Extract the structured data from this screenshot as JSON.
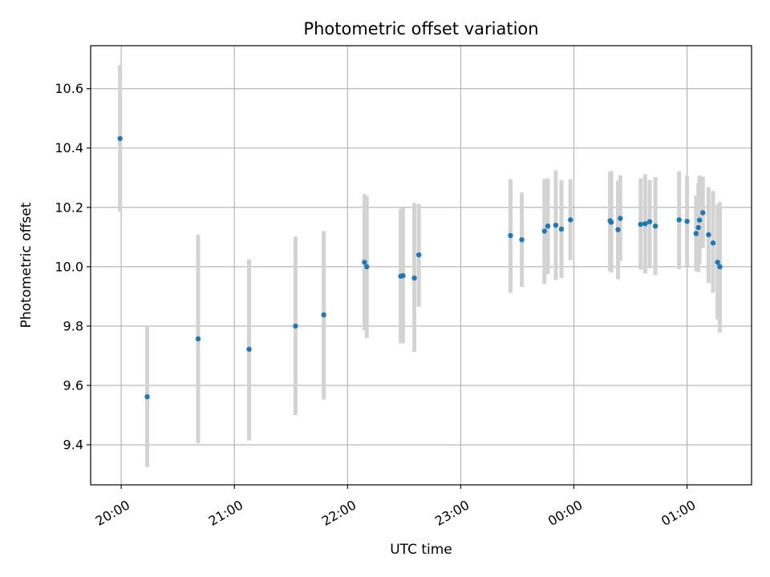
{
  "chart_data": {
    "type": "scatter",
    "title": "Photometric offset variation",
    "xlabel": "UTC time",
    "ylabel": "Photometric offset",
    "x_unit": "hours after 00:00 of first night",
    "x_ticks": [
      {
        "value": 20.0,
        "label": "20:00"
      },
      {
        "value": 21.0,
        "label": "21:00"
      },
      {
        "value": 22.0,
        "label": "22:00"
      },
      {
        "value": 23.0,
        "label": "23:00"
      },
      {
        "value": 24.0,
        "label": "00:00"
      },
      {
        "value": 25.0,
        "label": "01:00"
      }
    ],
    "y_ticks": [
      {
        "value": 9.4,
        "label": "9.4"
      },
      {
        "value": 9.6,
        "label": "9.6"
      },
      {
        "value": 9.8,
        "label": "9.8"
      },
      {
        "value": 10.0,
        "label": "10.0"
      },
      {
        "value": 10.2,
        "label": "10.2"
      },
      {
        "value": 10.4,
        "label": "10.4"
      },
      {
        "value": 10.6,
        "label": "10.6"
      }
    ],
    "xlim": [
      19.73,
      25.57
    ],
    "ylim": [
      9.265,
      10.745
    ],
    "grid": true,
    "colors": {
      "point": "#1f77b4",
      "errorbar": "#d3d3d3",
      "grid": "#b0b0b0",
      "axes": "#000000"
    },
    "series": [
      {
        "points": [
          {
            "x": 19.99,
            "y": 10.432,
            "err_low": 10.185,
            "err_high": 10.68
          },
          {
            "x": 20.23,
            "y": 9.562,
            "err_low": 9.325,
            "err_high": 9.8
          },
          {
            "x": 20.68,
            "y": 9.757,
            "err_low": 9.405,
            "err_high": 10.108
          },
          {
            "x": 21.13,
            "y": 9.722,
            "err_low": 9.415,
            "err_high": 10.025
          },
          {
            "x": 21.54,
            "y": 9.8,
            "err_low": 9.5,
            "err_high": 10.102
          },
          {
            "x": 21.79,
            "y": 9.838,
            "err_low": 9.553,
            "err_high": 10.12
          },
          {
            "x": 22.15,
            "y": 10.015,
            "err_low": 9.785,
            "err_high": 10.245
          },
          {
            "x": 22.17,
            "y": 10.0,
            "err_low": 9.76,
            "err_high": 10.238
          },
          {
            "x": 22.47,
            "y": 9.968,
            "err_low": 9.742,
            "err_high": 10.195
          },
          {
            "x": 22.49,
            "y": 9.97,
            "err_low": 9.742,
            "err_high": 10.198
          },
          {
            "x": 22.59,
            "y": 9.962,
            "err_low": 9.713,
            "err_high": 10.215
          },
          {
            "x": 22.63,
            "y": 10.04,
            "err_low": 9.865,
            "err_high": 10.212
          },
          {
            "x": 23.44,
            "y": 10.105,
            "err_low": 9.912,
            "err_high": 10.295
          },
          {
            "x": 23.54,
            "y": 10.091,
            "err_low": 9.932,
            "err_high": 10.25
          },
          {
            "x": 23.74,
            "y": 10.12,
            "err_low": 9.942,
            "err_high": 10.296
          },
          {
            "x": 23.77,
            "y": 10.137,
            "err_low": 9.975,
            "err_high": 10.298
          },
          {
            "x": 23.84,
            "y": 10.14,
            "err_low": 9.955,
            "err_high": 10.325
          },
          {
            "x": 23.89,
            "y": 10.127,
            "err_low": 9.962,
            "err_high": 10.292
          },
          {
            "x": 23.97,
            "y": 10.158,
            "err_low": 10.022,
            "err_high": 10.295
          },
          {
            "x": 24.32,
            "y": 10.155,
            "err_low": 9.985,
            "err_high": 10.32
          },
          {
            "x": 24.33,
            "y": 10.15,
            "err_low": 9.98,
            "err_high": 10.322
          },
          {
            "x": 24.39,
            "y": 10.125,
            "err_low": 9.958,
            "err_high": 10.29
          },
          {
            "x": 24.41,
            "y": 10.163,
            "err_low": 10.02,
            "err_high": 10.308
          },
          {
            "x": 24.59,
            "y": 10.143,
            "err_low": 9.99,
            "err_high": 10.298
          },
          {
            "x": 24.63,
            "y": 10.145,
            "err_low": 9.978,
            "err_high": 10.312
          },
          {
            "x": 24.67,
            "y": 10.152,
            "err_low": 9.995,
            "err_high": 10.292
          },
          {
            "x": 24.72,
            "y": 10.137,
            "err_low": 9.972,
            "err_high": 10.302
          },
          {
            "x": 24.93,
            "y": 10.158,
            "err_low": 9.992,
            "err_high": 10.322
          },
          {
            "x": 25.0,
            "y": 10.153,
            "err_low": 10.002,
            "err_high": 10.306
          },
          {
            "x": 25.08,
            "y": 10.112,
            "err_low": 9.985,
            "err_high": 10.24
          },
          {
            "x": 25.1,
            "y": 10.132,
            "err_low": 9.982,
            "err_high": 10.282
          },
          {
            "x": 25.11,
            "y": 10.157,
            "err_low": 10.01,
            "err_high": 10.307
          },
          {
            "x": 25.14,
            "y": 10.182,
            "err_low": 10.063,
            "err_high": 10.303
          },
          {
            "x": 25.19,
            "y": 10.108,
            "err_low": 9.945,
            "err_high": 10.268
          },
          {
            "x": 25.23,
            "y": 10.08,
            "err_low": 9.912,
            "err_high": 10.255
          },
          {
            "x": 25.27,
            "y": 10.015,
            "err_low": 9.822,
            "err_high": 10.21
          },
          {
            "x": 25.29,
            "y": 10.0,
            "err_low": 9.778,
            "err_high": 10.218
          }
        ]
      }
    ]
  }
}
